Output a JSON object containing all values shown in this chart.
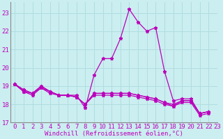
{
  "title": "",
  "xlabel": "Windchill (Refroidissement éolien,°C)",
  "ylabel": "",
  "background_color": "#cbeef0",
  "grid_color": "#b0dde0",
  "line_color": "#bb00bb",
  "xlim": [
    -0.5,
    23
  ],
  "ylim": [
    17.0,
    23.6
  ],
  "yticks": [
    17,
    18,
    19,
    20,
    21,
    22,
    23
  ],
  "xticks": [
    0,
    1,
    2,
    3,
    4,
    5,
    6,
    7,
    8,
    9,
    10,
    11,
    12,
    13,
    14,
    15,
    16,
    17,
    18,
    19,
    20,
    21,
    22,
    23
  ],
  "series": [
    [
      19.1,
      18.8,
      18.6,
      19.0,
      18.7,
      18.5,
      18.5,
      18.5,
      17.8,
      19.6,
      20.5,
      20.5,
      21.6,
      23.2,
      22.5,
      22.0,
      22.2,
      19.8,
      18.2,
      18.3,
      18.3,
      17.5,
      17.6
    ],
    [
      19.1,
      18.8,
      18.6,
      18.9,
      18.6,
      18.5,
      18.5,
      18.4,
      18.0,
      18.6,
      18.6,
      18.6,
      18.6,
      18.6,
      18.5,
      18.4,
      18.3,
      18.1,
      18.0,
      18.2,
      18.2,
      17.5,
      17.6
    ],
    [
      19.1,
      18.7,
      18.5,
      18.9,
      18.7,
      18.5,
      18.5,
      18.4,
      18.0,
      18.5,
      18.5,
      18.5,
      18.5,
      18.5,
      18.4,
      18.3,
      18.2,
      18.0,
      17.9,
      18.1,
      18.1,
      17.4,
      17.5
    ],
    [
      19.1,
      18.7,
      18.6,
      19.0,
      18.7,
      18.5,
      18.5,
      18.4,
      18.0,
      18.6,
      18.6,
      18.6,
      18.6,
      18.6,
      18.5,
      18.4,
      18.3,
      18.1,
      17.9,
      18.2,
      18.2,
      17.5,
      17.6
    ]
  ],
  "x_values": [
    0,
    1,
    2,
    3,
    4,
    5,
    6,
    7,
    8,
    9,
    10,
    11,
    12,
    13,
    14,
    15,
    16,
    17,
    18,
    19,
    20,
    21,
    22
  ],
  "spine_color": "#888888",
  "tick_fontsize": 6.5,
  "xlabel_fontsize": 6.5,
  "marker_size": 3.5,
  "line_width": 0.9
}
